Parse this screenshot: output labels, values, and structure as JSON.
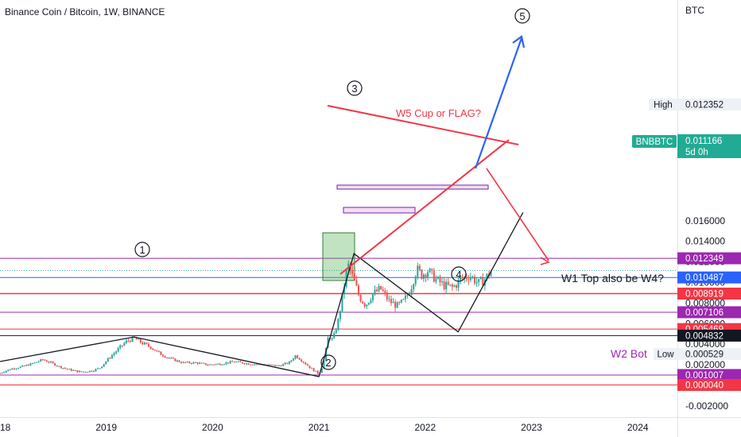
{
  "title": "Binance Coin / Bitcoin, 1W, BINANCE",
  "currency": "BTC",
  "colors": {
    "up": "#26a69a",
    "down": "#ef5350",
    "red": "#f23645",
    "purple": "#9c27b0",
    "blue": "#2962ff",
    "black": "#131722",
    "tickerbg": "#22ab94"
  },
  "chart_data": {
    "type": "candlestick",
    "title": "Binance Coin / Bitcoin, 1W, BINANCE",
    "x_tick_labels": [
      "18",
      "2019",
      "2020",
      "2021",
      "2022",
      "2023",
      "2024"
    ],
    "x_tick_dates": [
      2018.0,
      2019.0,
      2020.0,
      2021.0,
      2022.0,
      2023.0,
      2024.0
    ],
    "y_tick_labels": [
      "0.016000",
      "0.014000",
      "0.012000",
      "0.010000",
      "0.008000",
      "0.006000",
      "0.004000",
      "0.002000",
      "0.000000",
      "-0.002000"
    ],
    "y_tick_values": [
      0.016,
      0.014,
      0.012,
      0.01,
      0.008,
      0.006,
      0.004,
      0.002,
      0.0,
      -0.002
    ],
    "ylim": [
      -0.0028,
      0.0188
    ],
    "xlim": [
      2018.0,
      2024.72
    ],
    "last_price": 0.011166,
    "high": 0.012352,
    "low": 0.000529,
    "close_path": [
      [
        2018.0,
        0.0012
      ],
      [
        2018.1,
        0.0016
      ],
      [
        2018.2,
        0.0018
      ],
      [
        2018.3,
        0.0021
      ],
      [
        2018.4,
        0.0025
      ],
      [
        2018.48,
        0.0022
      ],
      [
        2018.56,
        0.0018
      ],
      [
        2018.66,
        0.0015
      ],
      [
        2018.76,
        0.0013
      ],
      [
        2018.86,
        0.0014
      ],
      [
        2018.94,
        0.0017
      ],
      [
        2019.02,
        0.0026
      ],
      [
        2019.1,
        0.0034
      ],
      [
        2019.18,
        0.0042
      ],
      [
        2019.26,
        0.0046
      ],
      [
        2019.34,
        0.0041
      ],
      [
        2019.42,
        0.0037
      ],
      [
        2019.5,
        0.0031
      ],
      [
        2019.6,
        0.0026
      ],
      [
        2019.72,
        0.0022
      ],
      [
        2019.84,
        0.0022
      ],
      [
        2019.96,
        0.002
      ],
      [
        2020.08,
        0.0021
      ],
      [
        2020.2,
        0.0023
      ],
      [
        2020.34,
        0.0021
      ],
      [
        2020.5,
        0.002
      ],
      [
        2020.62,
        0.0019
      ],
      [
        2020.72,
        0.0022
      ],
      [
        2020.78,
        0.0029
      ],
      [
        2020.84,
        0.0024
      ],
      [
        2020.92,
        0.0017
      ],
      [
        2021.0,
        0.0011
      ],
      [
        2021.04,
        0.002
      ],
      [
        2021.09,
        0.0048
      ],
      [
        2021.13,
        0.0044
      ],
      [
        2021.18,
        0.0062
      ],
      [
        2021.22,
        0.0085
      ],
      [
        2021.27,
        0.0118
      ],
      [
        2021.32,
        0.0105
      ],
      [
        2021.38,
        0.0086
      ],
      [
        2021.44,
        0.0078
      ],
      [
        2021.5,
        0.0088
      ],
      [
        2021.58,
        0.0094
      ],
      [
        2021.66,
        0.0082
      ],
      [
        2021.74,
        0.0077
      ],
      [
        2021.8,
        0.0082
      ],
      [
        2021.86,
        0.0093
      ],
      [
        2021.92,
        0.0113
      ],
      [
        2021.97,
        0.0107
      ],
      [
        2022.02,
        0.0112
      ],
      [
        2022.1,
        0.0103
      ],
      [
        2022.18,
        0.0097
      ],
      [
        2022.26,
        0.0095
      ],
      [
        2022.34,
        0.0103
      ],
      [
        2022.42,
        0.0107
      ],
      [
        2022.5,
        0.0099
      ],
      [
        2022.56,
        0.0103
      ],
      [
        2022.62,
        0.0111
      ]
    ],
    "horizontal_levels": [
      {
        "value": 0.012349,
        "label": "0.012349",
        "color": "#9c27b0"
      },
      {
        "value": 0.010487,
        "label": "0.010487",
        "color": "#2962ff"
      },
      {
        "value": 0.008919,
        "label": "0.008919",
        "color": "#f23645"
      },
      {
        "value": 0.007106,
        "label": "0.007106",
        "color": "#9c27b0"
      },
      {
        "value": 0.005469,
        "label": "0.005469",
        "color": "#f23645"
      },
      {
        "value": 0.004832,
        "label": "0.004832",
        "color": "#131722"
      },
      {
        "value": 0.001007,
        "label": "0.001007",
        "color": "#9c27b0"
      },
      {
        "value": 4e-05,
        "label": "0.000040",
        "color": "#f23645"
      }
    ],
    "wave_points": [
      {
        "label": "1",
        "date": 2019.26,
        "price": 0.0047
      },
      {
        "label": "2",
        "date": 2021.0,
        "price": 0.00085
      },
      {
        "label": "3",
        "date": 2021.33,
        "price": 0.0128
      },
      {
        "label": "4",
        "date": 2022.31,
        "price": 0.0052
      },
      {
        "label": "5",
        "date": 2022.92,
        "price": 0.0168
      }
    ],
    "annotations": [
      "W5 Cup or FLAG?",
      "W1 Top also be W4?",
      "W2 Bot"
    ]
  },
  "badges": {
    "high_label": "High",
    "high_value": "0.012352",
    "low_label": "Low",
    "low_value": "0.000529",
    "ticker": "BNBBTC",
    "ticker_price": "0.011166",
    "ticker_countdown": "5d 0h"
  },
  "labels": {
    "wave1": "1",
    "wave2": "2",
    "wave3": "3",
    "wave4": "4",
    "wave5": "5",
    "cup": "W5 Cup or FLAG?",
    "w1top": "W1 Top also be W4?",
    "w2bot": "W2 Bot"
  }
}
